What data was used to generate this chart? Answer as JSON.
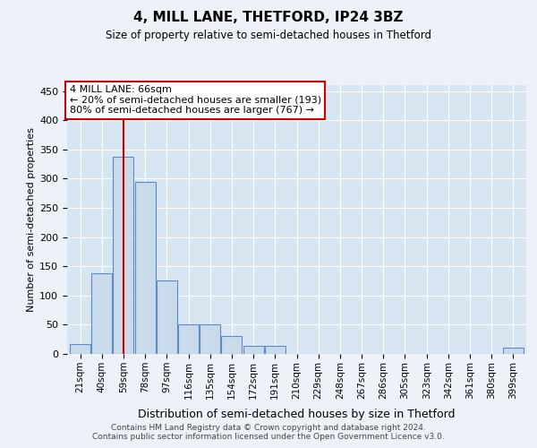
{
  "title": "4, MILL LANE, THETFORD, IP24 3BZ",
  "subtitle": "Size of property relative to semi-detached houses in Thetford",
  "xlabel": "Distribution of semi-detached houses by size in Thetford",
  "ylabel": "Number of semi-detached properties",
  "categories": [
    "21sqm",
    "40sqm",
    "59sqm",
    "78sqm",
    "97sqm",
    "116sqm",
    "135sqm",
    "154sqm",
    "172sqm",
    "191sqm",
    "210sqm",
    "229sqm",
    "248sqm",
    "267sqm",
    "286sqm",
    "305sqm",
    "323sqm",
    "342sqm",
    "361sqm",
    "380sqm",
    "399sqm"
  ],
  "values": [
    17,
    138,
    338,
    295,
    125,
    50,
    50,
    30,
    14,
    14,
    0,
    0,
    0,
    0,
    0,
    0,
    0,
    0,
    0,
    0,
    10
  ],
  "bar_color": "#c9daea",
  "bar_edge_color": "#5b8cc8",
  "property_bin_index": 2,
  "annotation_text": "4 MILL LANE: 66sqm\n← 20% of semi-detached houses are smaller (193)\n80% of semi-detached houses are larger (767) →",
  "vline_color": "#cc0000",
  "annotation_box_color": "#ffffff",
  "annotation_box_edge_color": "#cc0000",
  "footer_text": "Contains HM Land Registry data © Crown copyright and database right 2024.\nContains public sector information licensed under the Open Government Licence v3.0.",
  "ylim": [
    0,
    460
  ],
  "yticks": [
    0,
    50,
    100,
    150,
    200,
    250,
    300,
    350,
    400,
    450
  ],
  "background_color": "#eef2f8",
  "plot_bg_color": "#d8e6f3"
}
